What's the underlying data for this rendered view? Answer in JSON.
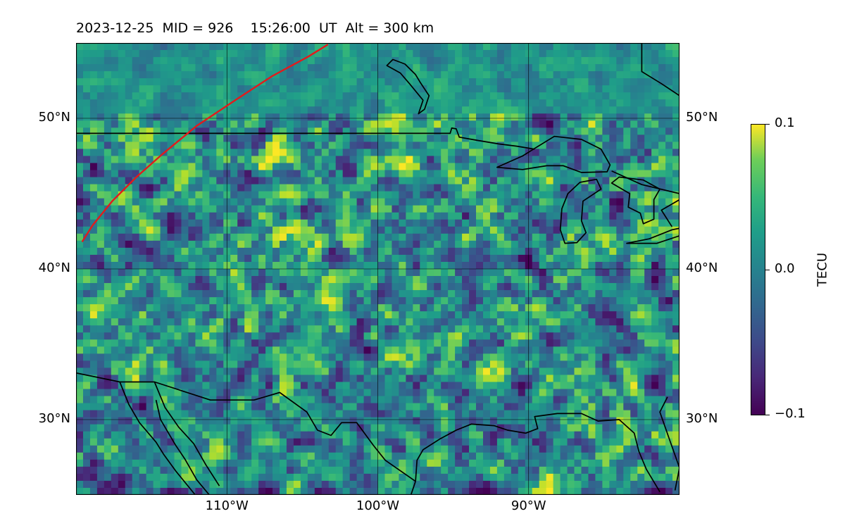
{
  "title": "2023-12-25  MID = 926    15:26:00  UT  Alt = 300 km",
  "map": {
    "extent": {
      "lon_min": -120,
      "lon_max": -80,
      "lat_min": 25,
      "lat_max": 55
    },
    "lat_ticks": [
      {
        "value": 50,
        "label": "50°N"
      },
      {
        "value": 40,
        "label": "40°N"
      },
      {
        "value": 30,
        "label": "30°N"
      }
    ],
    "lon_ticks": [
      {
        "value": -110,
        "label": "110°W"
      },
      {
        "value": -100,
        "label": "100°W"
      },
      {
        "value": -90,
        "label": "90°W"
      }
    ],
    "gridlines": true,
    "colormap": "viridis",
    "track_color": "#e31a1c",
    "coastline_color": "#000000"
  },
  "colorbar": {
    "label": "TECU",
    "min": -0.1,
    "max": 0.1,
    "ticks": [
      {
        "value": 0.1,
        "label": "0.1"
      },
      {
        "value": 0.0,
        "label": "0.0"
      },
      {
        "value": -0.1,
        "label": "−0.1"
      }
    ]
  }
}
